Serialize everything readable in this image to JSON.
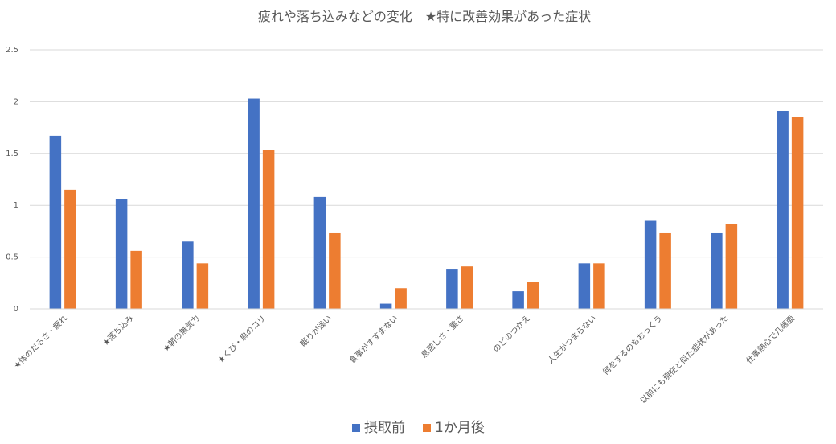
{
  "chart_data": {
    "type": "bar",
    "title": "疲れや落ち込みなどの変化　★特に改善効果があった症状",
    "categories": [
      "★体のだるさ・疲れ",
      "★落ち込み",
      "★朝の無気力",
      "★くび・肩のコリ",
      "眠りが浅い",
      "食事がすすまない",
      "息苦しさ・重さ",
      "のどのつかえ",
      "人生がつまらない",
      "何をするのもおっくう",
      "以前にも現在と似た症状があった",
      "仕事熱心で几帳面"
    ],
    "series": [
      {
        "name": "摂取前",
        "color": "#4472c4",
        "values": [
          1.67,
          1.06,
          0.65,
          2.03,
          1.08,
          0.05,
          0.38,
          0.17,
          0.44,
          0.85,
          0.73,
          1.91
        ]
      },
      {
        "name": "1か月後",
        "color": "#ed7d31",
        "values": [
          1.15,
          0.56,
          0.44,
          1.53,
          0.73,
          0.2,
          0.41,
          0.26,
          0.44,
          0.73,
          0.82,
          1.85
        ]
      }
    ],
    "yticks": [
      "0",
      "0.5",
      "1",
      "1.5",
      "2",
      "2.5"
    ],
    "ylim": [
      0,
      2.5
    ],
    "grid": true,
    "legend_position": "bottom"
  }
}
